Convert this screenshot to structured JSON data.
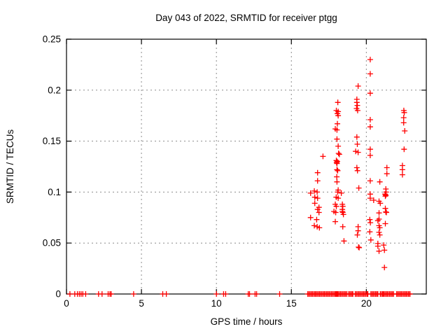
{
  "chart_data": {
    "type": "scatter",
    "title": "Day 043 of 2022, SRMTID for receiver ptgg",
    "xlabel": "GPS time / hours",
    "ylabel": "SRMTID / TECUs",
    "xlim": [
      0,
      24
    ],
    "ylim": [
      0,
      0.25
    ],
    "grid": "dotted",
    "legend": "none",
    "marker": "plus",
    "marker_color": "#ff0000",
    "grid_color": "#8c8c8c",
    "border_color": "#000000",
    "x_ticks": [
      {
        "v": 0,
        "label": "0"
      },
      {
        "v": 5,
        "label": "5"
      },
      {
        "v": 10,
        "label": "10"
      },
      {
        "v": 15,
        "label": "15"
      },
      {
        "v": 20,
        "label": "20"
      }
    ],
    "y_ticks": [
      {
        "v": 0.0,
        "label": "0"
      },
      {
        "v": 0.05,
        "label": "0.05"
      },
      {
        "v": 0.1,
        "label": "0.1"
      },
      {
        "v": 0.15,
        "label": "0.15"
      },
      {
        "v": 0.2,
        "label": "0.2"
      },
      {
        "v": 0.25,
        "label": "0.25"
      }
    ],
    "series": [
      {
        "name": "SRMTID",
        "points": [
          [
            20.26,
            0.23
          ],
          [
            20.26,
            0.216
          ],
          [
            19.45,
            0.204
          ],
          [
            20.26,
            0.197
          ],
          [
            19.37,
            0.191
          ],
          [
            19.37,
            0.188
          ],
          [
            19.4,
            0.185
          ],
          [
            19.35,
            0.182
          ],
          [
            19.42,
            0.18
          ],
          [
            18.1,
            0.188
          ],
          [
            18.0,
            0.18
          ],
          [
            18.12,
            0.179
          ],
          [
            18.07,
            0.177
          ],
          [
            18.12,
            0.175
          ],
          [
            18.07,
            0.167
          ],
          [
            17.93,
            0.162
          ],
          [
            18.04,
            0.161
          ],
          [
            22.5,
            0.18
          ],
          [
            22.53,
            0.178
          ],
          [
            22.49,
            0.173
          ],
          [
            22.49,
            0.168
          ],
          [
            22.56,
            0.16
          ],
          [
            20.26,
            0.171
          ],
          [
            20.26,
            0.164
          ],
          [
            18.04,
            0.152
          ],
          [
            19.37,
            0.154
          ],
          [
            19.4,
            0.147
          ],
          [
            18.12,
            0.145
          ],
          [
            20.26,
            0.142
          ],
          [
            22.52,
            0.142
          ],
          [
            20.26,
            0.136
          ],
          [
            17.11,
            0.135
          ],
          [
            18.15,
            0.138
          ],
          [
            18.2,
            0.137
          ],
          [
            19.29,
            0.14
          ],
          [
            19.45,
            0.139
          ],
          [
            18.0,
            0.131
          ],
          [
            18.06,
            0.13
          ],
          [
            18.02,
            0.129
          ],
          [
            18.04,
            0.128
          ],
          [
            18.04,
            0.122
          ],
          [
            18.09,
            0.121
          ],
          [
            19.37,
            0.124
          ],
          [
            19.41,
            0.121
          ],
          [
            21.37,
            0.124
          ],
          [
            21.37,
            0.118
          ],
          [
            22.41,
            0.126
          ],
          [
            22.41,
            0.122
          ],
          [
            22.41,
            0.117
          ],
          [
            16.75,
            0.119
          ],
          [
            16.75,
            0.111
          ],
          [
            18.03,
            0.115
          ],
          [
            18.04,
            0.11
          ],
          [
            20.26,
            0.111
          ],
          [
            20.9,
            0.11
          ],
          [
            19.5,
            0.104
          ],
          [
            18.09,
            0.1
          ],
          [
            16.53,
            0.101
          ],
          [
            16.72,
            0.1
          ],
          [
            16.28,
            0.099
          ],
          [
            16.56,
            0.095
          ],
          [
            16.75,
            0.094
          ],
          [
            16.56,
            0.089
          ],
          [
            16.75,
            0.083
          ],
          [
            16.28,
            0.075
          ],
          [
            20.26,
            0.098
          ],
          [
            20.26,
            0.094
          ],
          [
            21.3,
            0.103
          ],
          [
            21.32,
            0.1
          ],
          [
            21.25,
            0.098
          ],
          [
            21.3,
            0.097
          ],
          [
            21.27,
            0.096
          ],
          [
            18.12,
            0.102
          ],
          [
            18.33,
            0.099
          ],
          [
            17.99,
            0.095
          ],
          [
            18.12,
            0.094
          ],
          [
            17.93,
            0.088
          ],
          [
            18.0,
            0.086
          ],
          [
            18.4,
            0.088
          ],
          [
            18.43,
            0.086
          ],
          [
            18.4,
            0.083
          ],
          [
            18.47,
            0.078
          ],
          [
            20.49,
            0.092
          ],
          [
            20.85,
            0.091
          ],
          [
            20.93,
            0.089
          ],
          [
            21.27,
            0.084
          ],
          [
            16.84,
            0.085
          ],
          [
            16.84,
            0.08
          ],
          [
            17.84,
            0.081
          ],
          [
            17.96,
            0.08
          ],
          [
            18.4,
            0.081
          ],
          [
            18.43,
            0.08
          ],
          [
            16.69,
            0.073
          ],
          [
            16.53,
            0.067
          ],
          [
            16.72,
            0.066
          ],
          [
            16.87,
            0.065
          ],
          [
            17.93,
            0.071
          ],
          [
            18.43,
            0.066
          ],
          [
            18.51,
            0.052
          ],
          [
            19.45,
            0.066
          ],
          [
            19.45,
            0.062
          ],
          [
            19.4,
            0.058
          ],
          [
            19.48,
            0.046
          ],
          [
            19.52,
            0.0455
          ],
          [
            20.23,
            0.073
          ],
          [
            20.27,
            0.07
          ],
          [
            20.23,
            0.061
          ],
          [
            20.3,
            0.053
          ],
          [
            21.3,
            0.0805
          ],
          [
            21.34,
            0.08
          ],
          [
            20.85,
            0.0795
          ],
          [
            20.85,
            0.0735
          ],
          [
            20.77,
            0.072
          ],
          [
            21.27,
            0.069
          ],
          [
            20.85,
            0.067
          ],
          [
            20.9,
            0.065
          ],
          [
            20.85,
            0.0605
          ],
          [
            20.9,
            0.058
          ],
          [
            20.77,
            0.0495
          ],
          [
            21.16,
            0.048
          ],
          [
            20.77,
            0.047
          ],
          [
            21.21,
            0.043
          ],
          [
            20.85,
            0.042
          ],
          [
            21.21,
            0.026
          ]
        ],
        "zero_markers": [
          0.23,
          0.55,
          0.73,
          0.86,
          0.97,
          1.09,
          1.28,
          2.14,
          2.37,
          2.78,
          2.9,
          2.98,
          4.48,
          6.42,
          6.66,
          10.0,
          10.48,
          10.62,
          12.12,
          12.21,
          12.58,
          12.68,
          14.22,
          18.0,
          18.04,
          18.07
        ],
        "zero_runs": [
          [
            16.09,
            16.64
          ],
          [
            16.72,
            17.96
          ],
          [
            18.12,
            18.7
          ],
          [
            18.82,
            19.1
          ],
          [
            19.26,
            20.1
          ],
          [
            20.3,
            20.77
          ],
          [
            20.93,
            21.11
          ],
          [
            21.16,
            21.81
          ],
          [
            22.02,
            22.91
          ]
        ]
      }
    ]
  }
}
